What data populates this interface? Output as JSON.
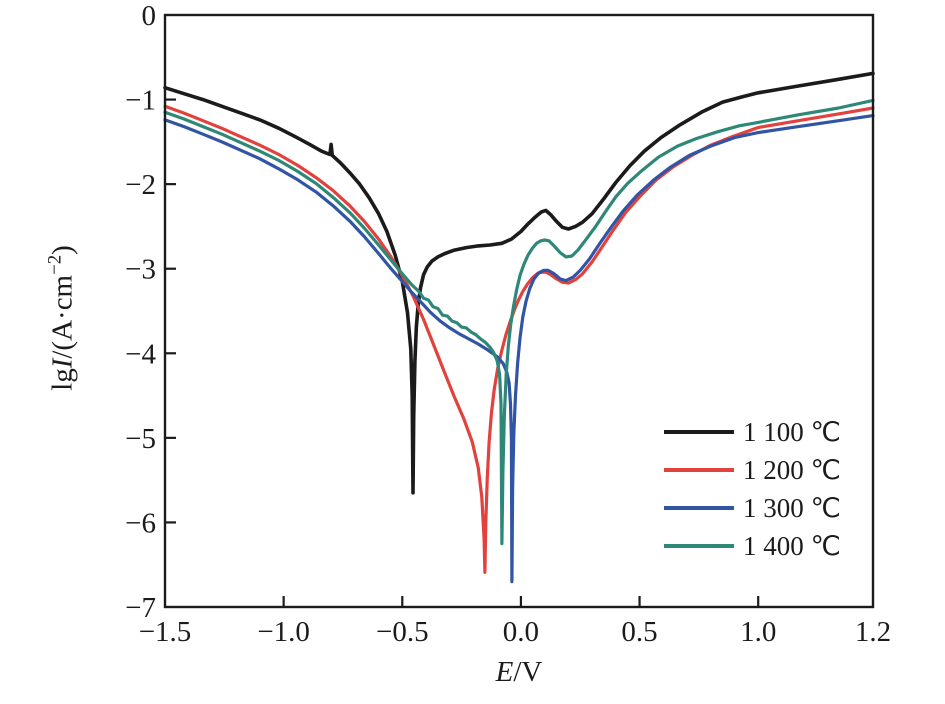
{
  "chart_data": {
    "type": "line",
    "title": "",
    "xlabel": "E/V",
    "ylabel": "lgI/(A·cm⁻²)",
    "xlabel_parts": {
      "symbol": "E",
      "suffix": "/V"
    },
    "ylabel_parts": {
      "prefix": "lg",
      "symbol": "I",
      "suffix": "/(A·cm",
      "exponent": "−2",
      "close": ")"
    },
    "xlim": [
      -1.5,
      1.2
    ],
    "ylim": [
      -7,
      0
    ],
    "grid": false,
    "legend_position": "lower-right",
    "x_ticks": {
      "values": [
        -1.5,
        -1.0,
        -0.5,
        0.0,
        0.5,
        1.0,
        1.2
      ],
      "labels": [
        "−1.5",
        "−1.0",
        "−0.5",
        "0.0",
        "0.5",
        "1.0",
        "1.2"
      ]
    },
    "y_ticks": {
      "values": [
        0,
        -1,
        -2,
        -3,
        -4,
        -5,
        -6,
        -7
      ],
      "labels": [
        "0",
        "−1",
        "−2",
        "−3",
        "−4",
        "−5",
        "−6",
        "−7"
      ]
    },
    "frame_color": "#1b1b1b",
    "series": [
      {
        "name": "1 100 ℃",
        "color": "#1b1b1b",
        "corrosion_potential_V": -0.455,
        "dip_lgI": -5.65,
        "points": [
          [
            -1.5,
            -0.86
          ],
          [
            -1.42,
            -0.93
          ],
          [
            -1.34,
            -1.0
          ],
          [
            -1.26,
            -1.08
          ],
          [
            -1.18,
            -1.16
          ],
          [
            -1.1,
            -1.24
          ],
          [
            -1.02,
            -1.34
          ],
          [
            -0.95,
            -1.44
          ],
          [
            -0.89,
            -1.53
          ],
          [
            -0.84,
            -1.61
          ],
          [
            -0.805,
            -1.65
          ],
          [
            -0.8,
            -1.53
          ],
          [
            -0.795,
            -1.66
          ],
          [
            -0.76,
            -1.75
          ],
          [
            -0.72,
            -1.87
          ],
          [
            -0.68,
            -2.0
          ],
          [
            -0.64,
            -2.16
          ],
          [
            -0.6,
            -2.35
          ],
          [
            -0.565,
            -2.56
          ],
          [
            -0.53,
            -2.84
          ],
          [
            -0.5,
            -3.15
          ],
          [
            -0.478,
            -3.52
          ],
          [
            -0.464,
            -3.95
          ],
          [
            -0.458,
            -4.5
          ],
          [
            -0.455,
            -5.65
          ],
          [
            -0.452,
            -4.75
          ],
          [
            -0.447,
            -4.1
          ],
          [
            -0.441,
            -3.7
          ],
          [
            -0.433,
            -3.42
          ],
          [
            -0.423,
            -3.22
          ],
          [
            -0.41,
            -3.07
          ],
          [
            -0.395,
            -2.98
          ],
          [
            -0.375,
            -2.91
          ],
          [
            -0.35,
            -2.86
          ],
          [
            -0.32,
            -2.82
          ],
          [
            -0.28,
            -2.78
          ],
          [
            -0.23,
            -2.75
          ],
          [
            -0.18,
            -2.73
          ],
          [
            -0.13,
            -2.72
          ],
          [
            -0.08,
            -2.7
          ],
          [
            -0.04,
            -2.65
          ],
          [
            0.0,
            -2.56
          ],
          [
            0.03,
            -2.47
          ],
          [
            0.06,
            -2.39
          ],
          [
            0.085,
            -2.33
          ],
          [
            0.105,
            -2.31
          ],
          [
            0.125,
            -2.36
          ],
          [
            0.15,
            -2.44
          ],
          [
            0.175,
            -2.51
          ],
          [
            0.2,
            -2.53
          ],
          [
            0.23,
            -2.5
          ],
          [
            0.26,
            -2.45
          ],
          [
            0.3,
            -2.35
          ],
          [
            0.35,
            -2.17
          ],
          [
            0.4,
            -1.98
          ],
          [
            0.46,
            -1.78
          ],
          [
            0.52,
            -1.61
          ],
          [
            0.59,
            -1.45
          ],
          [
            0.67,
            -1.3
          ],
          [
            0.76,
            -1.15
          ],
          [
            0.85,
            -1.03
          ],
          [
            0.93,
            -0.97
          ],
          [
            1.0,
            -0.92
          ],
          [
            1.07,
            -0.84
          ],
          [
            1.14,
            -0.76
          ],
          [
            1.2,
            -0.69
          ]
        ]
      },
      {
        "name": "1 200 ℃",
        "color": "#e2423d",
        "corrosion_potential_V": -0.152,
        "dip_lgI": -6.59,
        "points": [
          [
            -1.5,
            -1.08
          ],
          [
            -1.42,
            -1.16
          ],
          [
            -1.34,
            -1.25
          ],
          [
            -1.26,
            -1.34
          ],
          [
            -1.18,
            -1.44
          ],
          [
            -1.1,
            -1.54
          ],
          [
            -1.02,
            -1.65
          ],
          [
            -0.94,
            -1.78
          ],
          [
            -0.86,
            -1.93
          ],
          [
            -0.79,
            -2.08
          ],
          [
            -0.72,
            -2.26
          ],
          [
            -0.66,
            -2.44
          ],
          [
            -0.6,
            -2.65
          ],
          [
            -0.55,
            -2.85
          ],
          [
            -0.5,
            -3.08
          ],
          [
            -0.455,
            -3.32
          ],
          [
            -0.41,
            -3.6
          ],
          [
            -0.365,
            -3.92
          ],
          [
            -0.32,
            -4.24
          ],
          [
            -0.28,
            -4.52
          ],
          [
            -0.24,
            -4.78
          ],
          [
            -0.205,
            -5.05
          ],
          [
            -0.18,
            -5.35
          ],
          [
            -0.165,
            -5.7
          ],
          [
            -0.155,
            -6.2
          ],
          [
            -0.152,
            -6.59
          ],
          [
            -0.148,
            -6.0
          ],
          [
            -0.142,
            -5.5
          ],
          [
            -0.134,
            -5.05
          ],
          [
            -0.124,
            -4.7
          ],
          [
            -0.112,
            -4.42
          ],
          [
            -0.098,
            -4.18
          ],
          [
            -0.082,
            -3.98
          ],
          [
            -0.064,
            -3.79
          ],
          [
            -0.046,
            -3.63
          ],
          [
            -0.028,
            -3.49
          ],
          [
            -0.01,
            -3.37
          ],
          [
            0.008,
            -3.27
          ],
          [
            0.028,
            -3.18
          ],
          [
            0.048,
            -3.11
          ],
          [
            0.068,
            -3.06
          ],
          [
            0.088,
            -3.04
          ],
          [
            0.105,
            -3.04
          ],
          [
            0.125,
            -3.07
          ],
          [
            0.15,
            -3.12
          ],
          [
            0.175,
            -3.16
          ],
          [
            0.2,
            -3.17
          ],
          [
            0.23,
            -3.13
          ],
          [
            0.26,
            -3.06
          ],
          [
            0.3,
            -2.92
          ],
          [
            0.345,
            -2.73
          ],
          [
            0.39,
            -2.54
          ],
          [
            0.44,
            -2.34
          ],
          [
            0.5,
            -2.15
          ],
          [
            0.57,
            -1.95
          ],
          [
            0.64,
            -1.8
          ],
          [
            0.72,
            -1.66
          ],
          [
            0.8,
            -1.54
          ],
          [
            0.89,
            -1.44
          ],
          [
            1.0,
            -1.33
          ],
          [
            1.07,
            -1.25
          ],
          [
            1.14,
            -1.17
          ],
          [
            1.2,
            -1.1
          ]
        ]
      },
      {
        "name": "1 300 ℃",
        "color": "#3155a4",
        "corrosion_potential_V": -0.038,
        "dip_lgI": -6.7,
        "points": [
          [
            -1.5,
            -1.24
          ],
          [
            -1.42,
            -1.32
          ],
          [
            -1.34,
            -1.41
          ],
          [
            -1.26,
            -1.5
          ],
          [
            -1.18,
            -1.6
          ],
          [
            -1.1,
            -1.7
          ],
          [
            -1.02,
            -1.82
          ],
          [
            -0.94,
            -1.95
          ],
          [
            -0.86,
            -2.1
          ],
          [
            -0.79,
            -2.26
          ],
          [
            -0.72,
            -2.44
          ],
          [
            -0.66,
            -2.62
          ],
          [
            -0.6,
            -2.82
          ],
          [
            -0.55,
            -2.99
          ],
          [
            -0.5,
            -3.15
          ],
          [
            -0.46,
            -3.28
          ],
          [
            -0.42,
            -3.4
          ],
          [
            -0.38,
            -3.52
          ],
          [
            -0.34,
            -3.62
          ],
          [
            -0.3,
            -3.7
          ],
          [
            -0.26,
            -3.77
          ],
          [
            -0.22,
            -3.83
          ],
          [
            -0.18,
            -3.89
          ],
          [
            -0.14,
            -3.96
          ],
          [
            -0.1,
            -4.04
          ],
          [
            -0.075,
            -4.12
          ],
          [
            -0.06,
            -4.22
          ],
          [
            -0.05,
            -4.35
          ],
          [
            -0.044,
            -4.6
          ],
          [
            -0.04,
            -5.0
          ],
          [
            -0.038,
            -6.7
          ],
          [
            -0.035,
            -5.6
          ],
          [
            -0.03,
            -4.95
          ],
          [
            -0.023,
            -4.5
          ],
          [
            -0.014,
            -4.12
          ],
          [
            -0.004,
            -3.82
          ],
          [
            0.008,
            -3.57
          ],
          [
            0.022,
            -3.38
          ],
          [
            0.038,
            -3.23
          ],
          [
            0.055,
            -3.12
          ],
          [
            0.075,
            -3.05
          ],
          [
            0.095,
            -3.02
          ],
          [
            0.115,
            -3.02
          ],
          [
            0.14,
            -3.06
          ],
          [
            0.165,
            -3.12
          ],
          [
            0.19,
            -3.14
          ],
          [
            0.22,
            -3.1
          ],
          [
            0.25,
            -3.02
          ],
          [
            0.29,
            -2.88
          ],
          [
            0.335,
            -2.69
          ],
          [
            0.38,
            -2.51
          ],
          [
            0.43,
            -2.32
          ],
          [
            0.49,
            -2.13
          ],
          [
            0.56,
            -1.95
          ],
          [
            0.63,
            -1.8
          ],
          [
            0.71,
            -1.66
          ],
          [
            0.8,
            -1.55
          ],
          [
            0.9,
            -1.45
          ],
          [
            1.0,
            -1.39
          ],
          [
            1.07,
            -1.32
          ],
          [
            1.14,
            -1.25
          ],
          [
            1.2,
            -1.19
          ]
        ]
      },
      {
        "name": "1 400 ℃",
        "color": "#2e8878",
        "corrosion_potential_V": -0.08,
        "dip_lgI": -6.25,
        "points": [
          [
            -1.5,
            -1.15
          ],
          [
            -1.42,
            -1.23
          ],
          [
            -1.34,
            -1.32
          ],
          [
            -1.26,
            -1.41
          ],
          [
            -1.18,
            -1.51
          ],
          [
            -1.1,
            -1.61
          ],
          [
            -1.02,
            -1.72
          ],
          [
            -0.94,
            -1.85
          ],
          [
            -0.86,
            -2.0
          ],
          [
            -0.79,
            -2.16
          ],
          [
            -0.72,
            -2.34
          ],
          [
            -0.66,
            -2.52
          ],
          [
            -0.6,
            -2.72
          ],
          [
            -0.55,
            -2.89
          ],
          [
            -0.5,
            -3.06
          ],
          [
            -0.46,
            -3.19
          ],
          [
            -0.43,
            -3.27
          ],
          [
            -0.41,
            -3.35
          ],
          [
            -0.39,
            -3.37
          ],
          [
            -0.37,
            -3.45
          ],
          [
            -0.35,
            -3.47
          ],
          [
            -0.33,
            -3.55
          ],
          [
            -0.31,
            -3.56
          ],
          [
            -0.29,
            -3.62
          ],
          [
            -0.27,
            -3.64
          ],
          [
            -0.25,
            -3.69
          ],
          [
            -0.23,
            -3.7
          ],
          [
            -0.21,
            -3.75
          ],
          [
            -0.19,
            -3.78
          ],
          [
            -0.17,
            -3.83
          ],
          [
            -0.15,
            -3.87
          ],
          [
            -0.13,
            -3.93
          ],
          [
            -0.115,
            -3.99
          ],
          [
            -0.1,
            -4.09
          ],
          [
            -0.09,
            -4.25
          ],
          [
            -0.084,
            -4.6
          ],
          [
            -0.08,
            -6.25
          ],
          [
            -0.076,
            -5.4
          ],
          [
            -0.07,
            -4.75
          ],
          [
            -0.062,
            -4.25
          ],
          [
            -0.053,
            -3.92
          ],
          [
            -0.043,
            -3.66
          ],
          [
            -0.031,
            -3.44
          ],
          [
            -0.018,
            -3.25
          ],
          [
            -0.004,
            -3.08
          ],
          [
            0.012,
            -2.95
          ],
          [
            0.03,
            -2.84
          ],
          [
            0.048,
            -2.76
          ],
          [
            0.066,
            -2.7
          ],
          [
            0.084,
            -2.67
          ],
          [
            0.1,
            -2.66
          ],
          [
            0.118,
            -2.67
          ],
          [
            0.14,
            -2.73
          ],
          [
            0.165,
            -2.81
          ],
          [
            0.19,
            -2.86
          ],
          [
            0.215,
            -2.85
          ],
          [
            0.24,
            -2.78
          ],
          [
            0.27,
            -2.67
          ],
          [
            0.31,
            -2.52
          ],
          [
            0.355,
            -2.33
          ],
          [
            0.4,
            -2.15
          ],
          [
            0.45,
            -1.99
          ],
          [
            0.51,
            -1.84
          ],
          [
            0.58,
            -1.68
          ],
          [
            0.66,
            -1.55
          ],
          [
            0.74,
            -1.46
          ],
          [
            0.83,
            -1.38
          ],
          [
            0.92,
            -1.31
          ],
          [
            1.0,
            -1.27
          ],
          [
            1.07,
            -1.18
          ],
          [
            1.14,
            -1.1
          ],
          [
            1.2,
            -1.01
          ]
        ]
      }
    ]
  }
}
